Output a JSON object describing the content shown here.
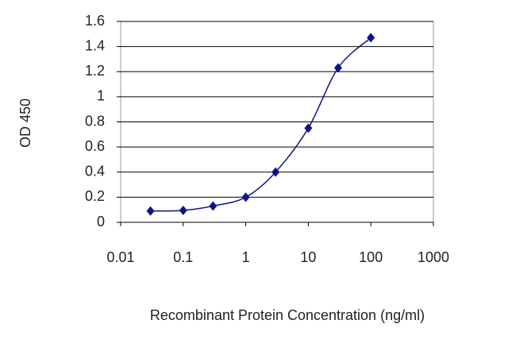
{
  "chart_data": {
    "type": "line",
    "xlabel": "Recombinant Protein Concentration (ng/ml)",
    "ylabel": "OD 450",
    "x": [
      0.03,
      0.1,
      0.3,
      1,
      3,
      10,
      30,
      100
    ],
    "series": [
      {
        "color": "#10108c",
        "values": [
          0.09,
          0.095,
          0.13,
          0.2,
          0.4,
          0.75,
          1.23,
          1.47
        ]
      }
    ],
    "xscale": "log",
    "xlim": [
      0.01,
      1000
    ],
    "xticks": [
      0.01,
      0.1,
      1,
      10,
      100,
      1000
    ],
    "ylim": [
      0,
      1.6
    ],
    "yticks": [
      0,
      0.2,
      0.4,
      0.6,
      0.8,
      1,
      1.2,
      1.4,
      1.6
    ],
    "grid": true
  }
}
